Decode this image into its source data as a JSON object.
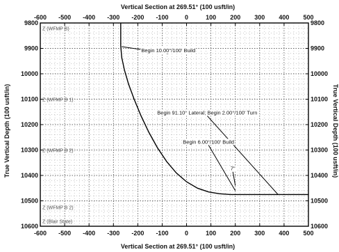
{
  "chart_data": {
    "type": "line",
    "title": "Vertical Section at 269.51° (100 usft/in)",
    "xlabel": "Vertical Section at 269.51° (100 usft/in)",
    "ylabel": "True Vertical Depth (100 usft/in)",
    "ylabel_right": "True Vertical Depth (100 usft/in)",
    "xlim": [
      -600,
      500
    ],
    "ylim": [
      9800,
      10600
    ],
    "y_inverted": true,
    "x_ticks": [
      -600,
      -500,
      -400,
      -300,
      -200,
      -100,
      0,
      100,
      200,
      300,
      400,
      500
    ],
    "x_tick_labels": [
      "-600",
      "-500",
      "-400",
      "-300",
      "-200",
      "-100",
      "0",
      "100",
      "200",
      "300",
      "400",
      "500"
    ],
    "y_ticks": [
      9800,
      9900,
      10000,
      10100,
      10200,
      10300,
      10400,
      10500,
      10600
    ],
    "y_tick_labels": [
      "9800",
      "9900",
      "10000",
      "10100",
      "10200",
      "10300",
      "10400",
      "10500",
      "10600"
    ],
    "y_tick_labels_right": [
      "9800",
      "9900",
      "10000",
      "10100",
      "10200",
      "10300",
      "10400",
      "10500",
      "10600"
    ],
    "grid": true,
    "series": [
      {
        "x": [
          -270,
          -270,
          -266,
          -255,
          -238,
          -215,
          -187,
          -155,
          -120,
          -82,
          -42,
          0,
          45,
          90,
          135,
          180,
          225,
          270,
          315,
          360,
          380,
          420,
          470,
          500
        ],
        "y": [
          9800,
          9890,
          9935,
          9985,
          10040,
          10100,
          10165,
          10230,
          10290,
          10345,
          10390,
          10425,
          10450,
          10465,
          10472,
          10475,
          10475,
          10475,
          10475,
          10475,
          10475,
          10475,
          10475,
          10475
        ]
      }
    ],
    "formations": [
      {
        "label": "Z (WFMP B)",
        "y": 9820
      },
      {
        "label": "Z (WFMP B 1)",
        "y": 10100
      },
      {
        "label": "Z (WFMP B 2)",
        "y": 10300
      },
      {
        "label": "Z (WFMP B 2)",
        "y": 10525
      },
      {
        "label": "Z (Blair State)",
        "y": 10580
      }
    ],
    "annotations": [
      {
        "text": "Begin 10.00°/100' Build",
        "label_x": -75,
        "label_y": 9915,
        "point_x": -266,
        "point_y": 9893
      },
      {
        "text": "Begin 91.10° Lateral; Begin 2.00°/100' Turn",
        "label_x": 85,
        "label_y": 10160,
        "point_x": 375,
        "point_y": 10475
      },
      {
        "text": "Begin 6.00°/100' Build",
        "label_x": 90,
        "label_y": 10275,
        "point_x": 200,
        "point_y": 10460
      },
      {
        "text": "7\"",
        "label_x": 190,
        "label_y": 10380,
        "point_x": 200,
        "point_y": 10440
      }
    ]
  }
}
